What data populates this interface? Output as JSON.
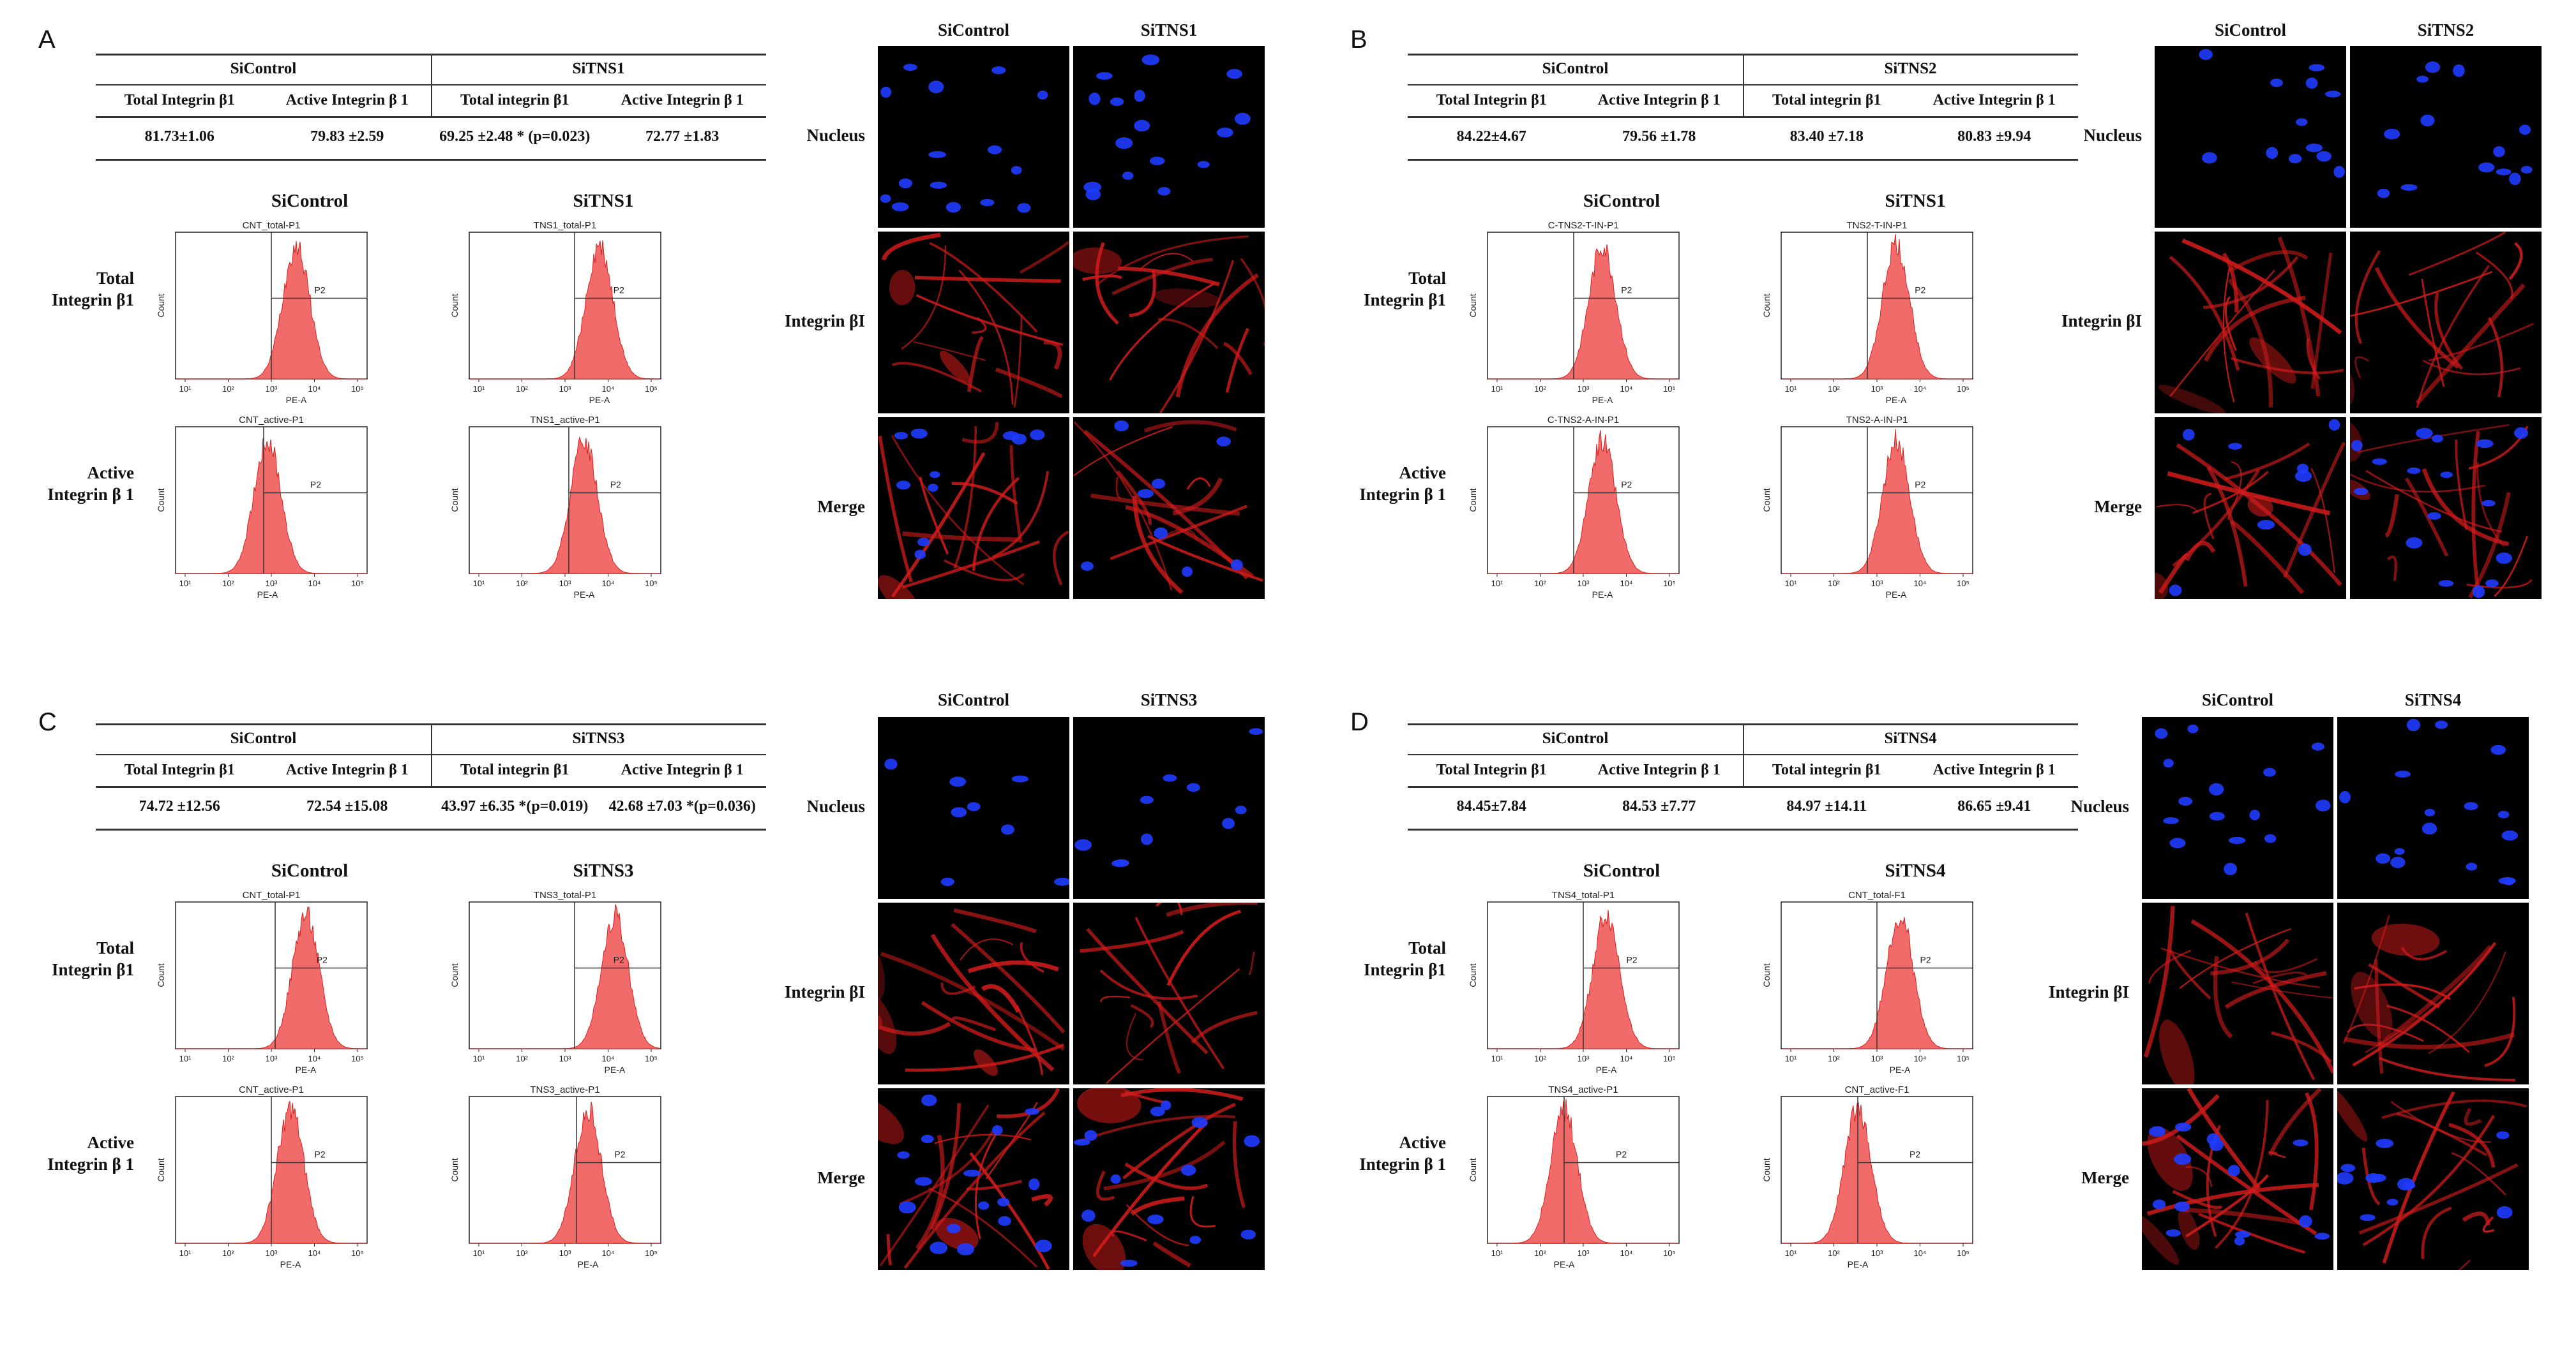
{
  "panels": [
    {
      "label": "A",
      "table": {
        "groups": [
          "SiControl",
          "SiTNS1"
        ],
        "columns": [
          "Total Integrin β1",
          "Active Integrin β 1",
          "Total integrin β1",
          "Active Integrin β 1"
        ],
        "values": [
          "81.73±1.06",
          "79.83 ±2.59",
          "69.25 ±2.48 * (p=0.023)",
          "72.77 ±1.83"
        ]
      },
      "flow": {
        "titles": [
          "SiControl",
          "SiTNS1"
        ],
        "rows": [
          "Total\nIntegrin β1",
          "Active\nIntegrin β 1"
        ],
        "plot_titles": [
          [
            "CNT_total-P1",
            "TNS1_total-P1"
          ],
          [
            "CNT_active-P1",
            "TNS1_active-P1"
          ]
        ],
        "hist_peak": [
          [
            0.63,
            0.68
          ],
          [
            0.48,
            0.6
          ]
        ],
        "gate_x": [
          [
            0.5,
            0.55
          ],
          [
            0.46,
            0.52
          ]
        ]
      },
      "micro": {
        "cols": [
          "SiControl",
          "SiTNS1"
        ],
        "rows": [
          "Nucleus",
          "Integrin βI",
          "Merge"
        ]
      }
    },
    {
      "label": "B",
      "table": {
        "groups": [
          "SiControl",
          "SiTNS2"
        ],
        "columns": [
          "Total Integrin β1",
          "Active Integrin β 1",
          "Total integrin β1",
          "Active Integrin β 1"
        ],
        "values": [
          "84.22±4.67",
          "79.56 ±1.78",
          "83.40 ±7.18",
          "80.83 ±9.94"
        ]
      },
      "flow": {
        "titles": [
          "SiControl",
          "SiTNS1"
        ],
        "rows": [
          "Total\nIntegrin β1",
          "Active\nIntegrin β 1"
        ],
        "plot_titles": [
          [
            "C-TNS2-T-IN-P1",
            "TNS2-T-IN-P1"
          ],
          [
            "C-TNS2-A-IN-P1",
            "TNS2-A-IN-P1"
          ]
        ],
        "hist_peak": [
          [
            0.6,
            0.6
          ],
          [
            0.6,
            0.6
          ]
        ],
        "gate_x": [
          [
            0.45,
            0.45
          ],
          [
            0.45,
            0.45
          ]
        ]
      },
      "micro": {
        "cols": [
          "SiControl",
          "SiTNS2"
        ],
        "rows": [
          "Nucleus",
          "Integrin βI",
          "Merge"
        ]
      }
    },
    {
      "label": "C",
      "table": {
        "groups": [
          "SiControl",
          "SiTNS3"
        ],
        "columns": [
          "Total Integrin β1",
          "Active Integrin β 1",
          "Total integrin β1",
          "Active Integrin β 1"
        ],
        "values": [
          "74.72 ±12.56",
          "72.54 ±15.08",
          "43.97 ±6.35 *(p=0.019)",
          "42.68 ±7.03 *(p=0.036)"
        ]
      },
      "flow": {
        "titles": [
          "SiControl",
          "SiTNS3"
        ],
        "rows": [
          "Total\nIntegrin β1",
          "Active\nIntegrin β 1"
        ],
        "plot_titles": [
          [
            "CNT_total-P1",
            "TNS3_total-P1"
          ],
          [
            "CNT_active-P1",
            "TNS3_active-P1"
          ]
        ],
        "hist_peak": [
          [
            0.68,
            0.76
          ],
          [
            0.6,
            0.62
          ]
        ],
        "gate_x": [
          [
            0.52,
            0.55
          ],
          [
            0.5,
            0.56
          ]
        ]
      },
      "micro": {
        "cols": [
          "SiControl",
          "SiTNS3"
        ],
        "rows": [
          "Nucleus",
          "Integrin βI",
          "Merge"
        ]
      }
    },
    {
      "label": "D",
      "table": {
        "groups": [
          "SiControl",
          "SiTNS4"
        ],
        "columns": [
          "Total Integrin β1",
          "Active Integrin β 1",
          "Total integrin β1",
          "Active Integrin β 1"
        ],
        "values": [
          "84.45±7.84",
          "84.53 ±7.77",
          "84.97 ±14.11",
          "86.65 ±9.41"
        ]
      },
      "flow": {
        "titles": [
          "SiControl",
          "SiTNS4"
        ],
        "rows": [
          "Total\nIntegrin β1",
          "Active\nIntegrin β 1"
        ],
        "plot_titles": [
          [
            "TNS4_total-P1",
            "CNT_total-F1"
          ],
          [
            "TNS4_active-P1",
            "CNT_active-F1"
          ]
        ],
        "hist_peak": [
          [
            0.62,
            0.62
          ],
          [
            0.4,
            0.4
          ]
        ],
        "gate_x": [
          [
            0.5,
            0.5
          ],
          [
            0.4,
            0.4
          ]
        ]
      },
      "micro": {
        "cols": [
          "SiControl",
          "SiTNS4"
        ],
        "rows": [
          "Nucleus",
          "Integrin βI",
          "Merge"
        ]
      }
    }
  ],
  "axes": {
    "x_label": "PE-A",
    "y_label": "Count",
    "gate_label": "P2",
    "x_ticks": [
      "10¹",
      "10²",
      "10³",
      "10⁴",
      "10⁵"
    ]
  },
  "colors": {
    "histogram_fill": "#f26b6b",
    "histogram_edge": "#d92020",
    "nucleus": "#1f3cff",
    "integrin": "#d11b1b",
    "background": "#000000"
  }
}
